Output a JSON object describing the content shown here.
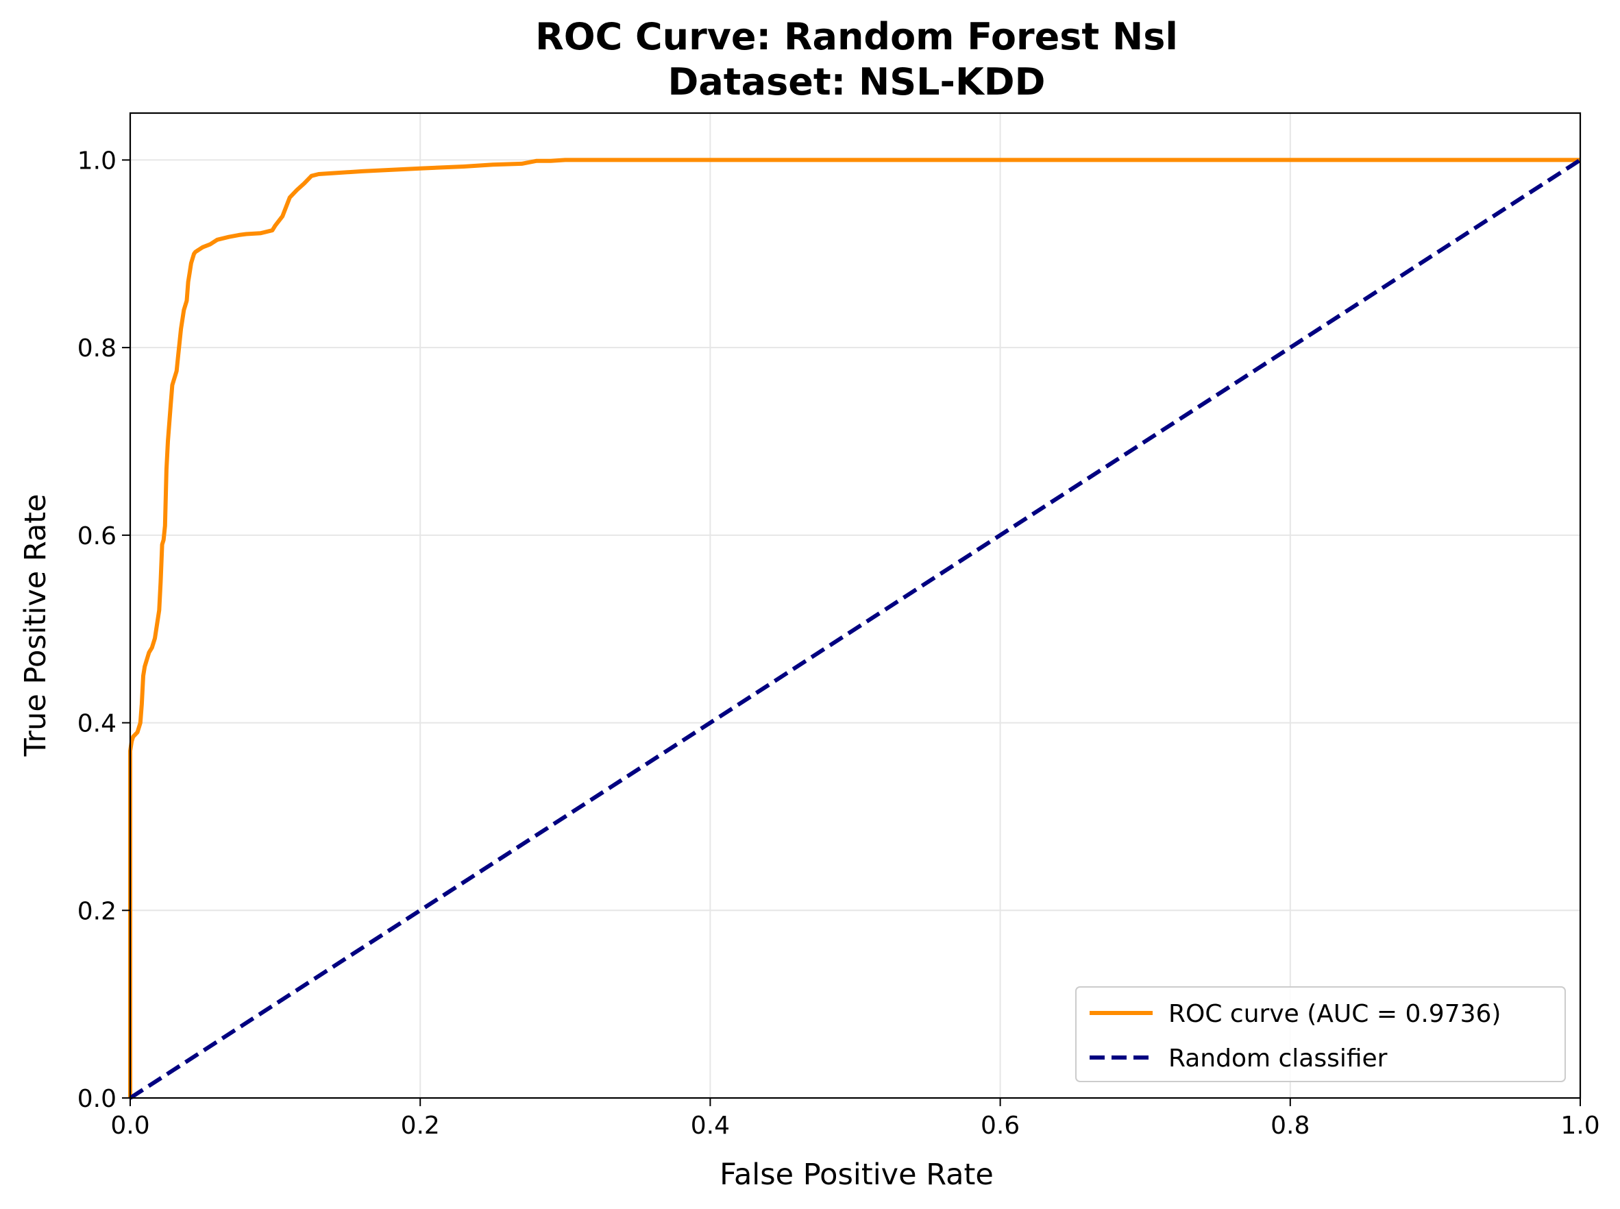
{
  "chart_data": {
    "type": "line",
    "title": "ROC Curve: Random Forest Nsl",
    "subtitle": "Dataset: NSL-KDD",
    "xlabel": "False Positive Rate",
    "ylabel": "True Positive Rate",
    "xlim": [
      0.0,
      1.0
    ],
    "ylim": [
      0.0,
      1.05
    ],
    "x_ticks": [
      "0.0",
      "0.2",
      "0.4",
      "0.6",
      "0.8",
      "1.0"
    ],
    "y_ticks": [
      "0.0",
      "0.2",
      "0.4",
      "0.6",
      "0.8",
      "1.0"
    ],
    "grid": true,
    "legend_position": "bottom-right",
    "series": [
      {
        "name": "ROC curve (AUC = 0.9736)",
        "color": "#ff8c00",
        "style": "solid",
        "x": [
          0.0,
          0.0,
          0.001,
          0.002,
          0.005,
          0.007,
          0.008,
          0.009,
          0.01,
          0.012,
          0.013,
          0.015,
          0.017,
          0.02,
          0.021,
          0.022,
          0.023,
          0.024,
          0.025,
          0.026,
          0.028,
          0.029,
          0.03,
          0.031,
          0.032,
          0.033,
          0.035,
          0.037,
          0.039,
          0.04,
          0.041,
          0.042,
          0.043,
          0.044,
          0.045,
          0.046,
          0.048,
          0.05,
          0.055,
          0.06,
          0.068,
          0.075,
          0.08,
          0.09,
          0.098,
          0.1,
          0.105,
          0.11,
          0.115,
          0.12,
          0.125,
          0.13,
          0.14,
          0.16,
          0.2,
          0.23,
          0.25,
          0.27,
          0.28,
          0.29,
          0.3,
          0.5,
          1.0
        ],
        "y": [
          0.0,
          0.37,
          0.38,
          0.385,
          0.39,
          0.4,
          0.42,
          0.45,
          0.46,
          0.47,
          0.475,
          0.48,
          0.49,
          0.52,
          0.55,
          0.59,
          0.595,
          0.61,
          0.67,
          0.7,
          0.74,
          0.76,
          0.765,
          0.77,
          0.775,
          0.79,
          0.82,
          0.84,
          0.85,
          0.87,
          0.88,
          0.89,
          0.895,
          0.9,
          0.902,
          0.903,
          0.905,
          0.907,
          0.91,
          0.915,
          0.918,
          0.92,
          0.921,
          0.922,
          0.925,
          0.93,
          0.94,
          0.96,
          0.968,
          0.975,
          0.983,
          0.985,
          0.986,
          0.988,
          0.991,
          0.993,
          0.995,
          0.996,
          0.999,
          0.999,
          1.0,
          1.0,
          1.0
        ]
      },
      {
        "name": "Random classifier",
        "color": "#000080",
        "style": "dashed",
        "x": [
          0.0,
          1.0
        ],
        "y": [
          0.0,
          1.0
        ]
      }
    ]
  }
}
